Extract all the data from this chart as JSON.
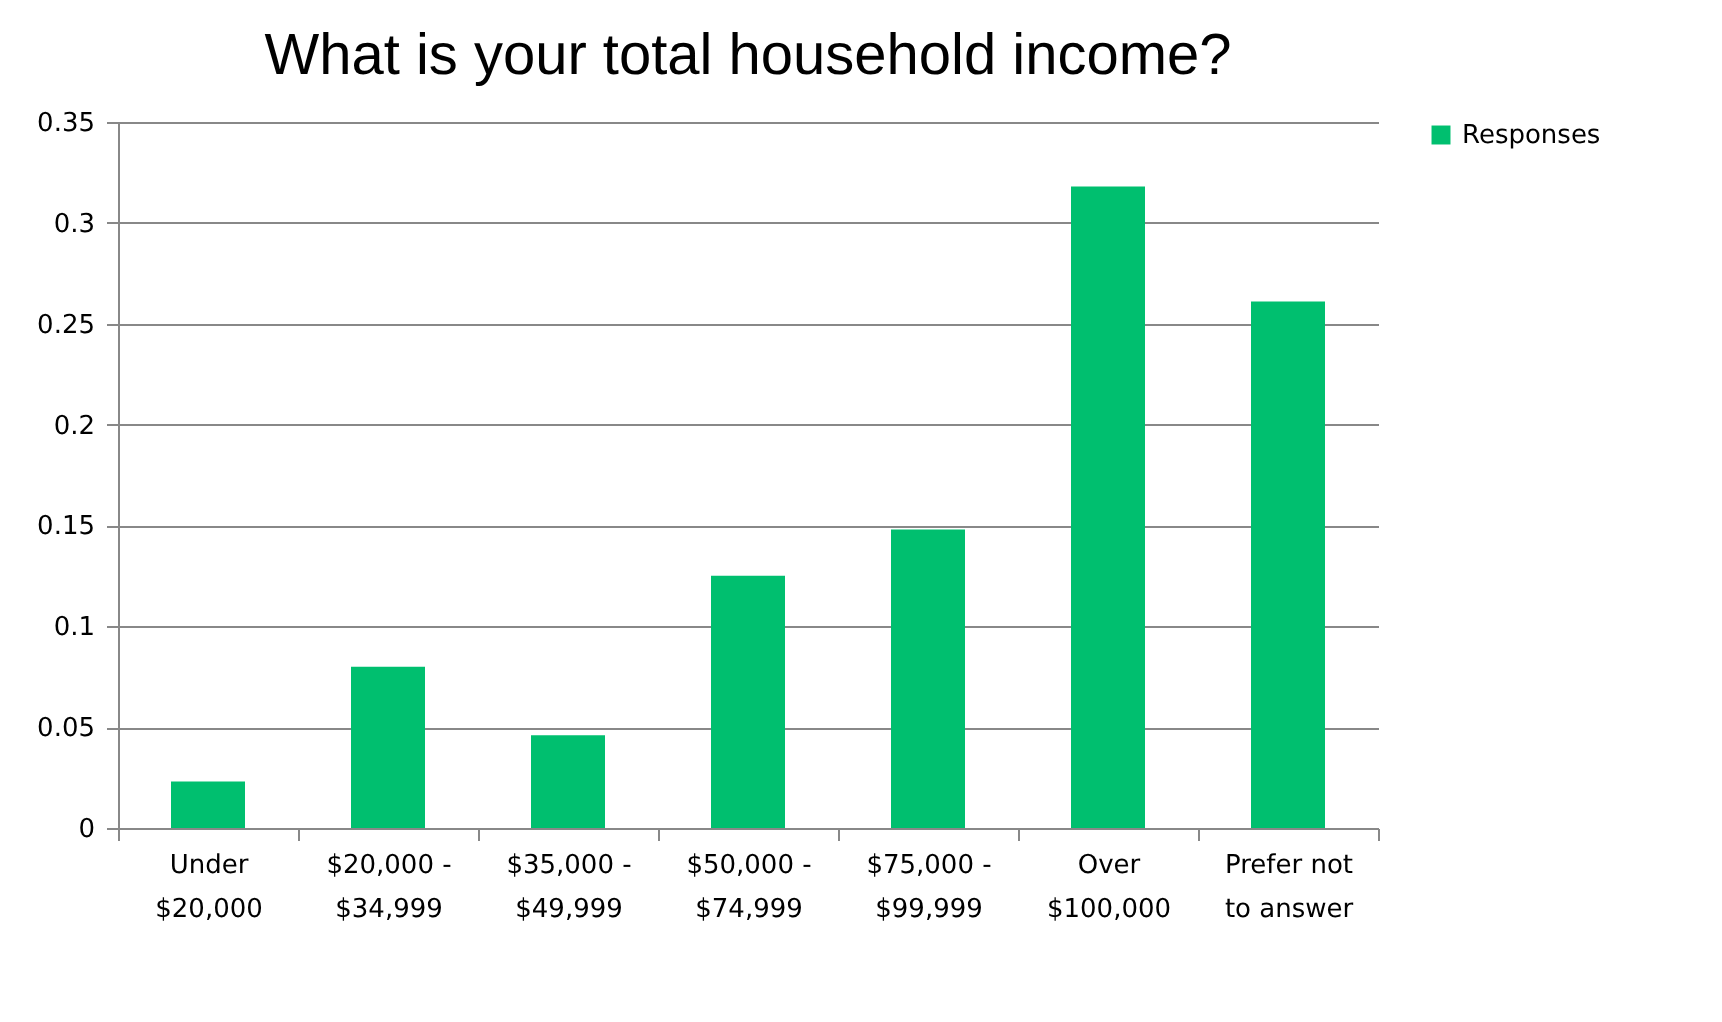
{
  "chart_data": {
    "type": "bar",
    "title": "What is your total household income?",
    "categories": [
      "Under\n$20,000",
      "$20,000 -\n$34,999",
      "$35,000 -\n$49,999",
      "$50,000 -\n$74,999",
      "$75,000 -\n$99,999",
      "Over\n$100,000",
      "Prefer not\nto answer"
    ],
    "series": [
      {
        "name": "Responses",
        "color": "#00bf6f",
        "values": [
          0.023,
          0.08,
          0.046,
          0.125,
          0.148,
          0.318,
          0.261
        ]
      }
    ],
    "ylim": [
      0,
      0.35
    ],
    "yticks": [
      0,
      0.05,
      0.1,
      0.15,
      0.2,
      0.25,
      0.3,
      0.35
    ],
    "grid": "y",
    "legend": "right"
  }
}
